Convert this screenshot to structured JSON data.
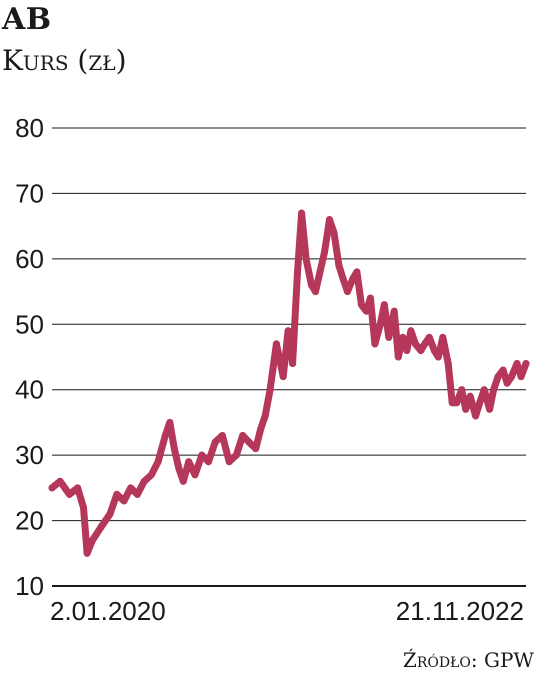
{
  "header": {
    "title": "AB",
    "subtitle": "Kurs (zł)"
  },
  "footer": {
    "source": "Źródło: GPW"
  },
  "chart_data": {
    "type": "line",
    "title": "AB",
    "ylabel": "Kurs (zł)",
    "xlabel": "",
    "ylim": [
      10,
      80
    ],
    "yticks": [
      10,
      20,
      30,
      40,
      50,
      60,
      70,
      80
    ],
    "grid": true,
    "line_color": "#b5375a",
    "x_tick_labels": [
      "2.01.2020",
      "21.11.2022"
    ],
    "x": [
      "2020-01-02",
      "2020-01-20",
      "2020-02-10",
      "2020-02-28",
      "2020-03-12",
      "2020-03-20",
      "2020-04-01",
      "2020-04-20",
      "2020-05-10",
      "2020-05-25",
      "2020-06-10",
      "2020-06-25",
      "2020-07-10",
      "2020-07-25",
      "2020-08-10",
      "2020-08-25",
      "2020-09-10",
      "2020-09-20",
      "2020-09-30",
      "2020-10-10",
      "2020-10-20",
      "2020-11-01",
      "2020-11-15",
      "2020-11-30",
      "2020-12-15",
      "2020-12-30",
      "2021-01-15",
      "2021-01-30",
      "2021-02-15",
      "2021-03-01",
      "2021-03-15",
      "2021-03-30",
      "2021-04-10",
      "2021-04-20",
      "2021-05-01",
      "2021-05-15",
      "2021-05-30",
      "2021-06-10",
      "2021-06-20",
      "2021-07-01",
      "2021-07-10",
      "2021-07-20",
      "2021-08-01",
      "2021-08-10",
      "2021-08-20",
      "2021-08-30",
      "2021-09-10",
      "2021-09-20",
      "2021-10-01",
      "2021-10-10",
      "2021-10-20",
      "2021-11-01",
      "2021-11-10",
      "2021-11-20",
      "2021-12-01",
      "2021-12-10",
      "2021-12-20",
      "2022-01-01",
      "2022-01-10",
      "2022-01-20",
      "2022-02-01",
      "2022-02-10",
      "2022-02-20",
      "2022-03-01",
      "2022-03-10",
      "2022-03-20",
      "2022-04-01",
      "2022-04-10",
      "2022-04-20",
      "2022-05-01",
      "2022-05-10",
      "2022-05-20",
      "2022-06-01",
      "2022-06-10",
      "2022-06-20",
      "2022-07-01",
      "2022-07-10",
      "2022-07-20",
      "2022-08-01",
      "2022-08-10",
      "2022-08-20",
      "2022-09-01",
      "2022-09-10",
      "2022-09-20",
      "2022-10-01",
      "2022-10-10",
      "2022-10-20",
      "2022-11-01",
      "2022-11-10",
      "2022-11-21"
    ],
    "series": [
      {
        "values": [
          25,
          26,
          24,
          25,
          22,
          15,
          17,
          19,
          21,
          24,
          23,
          25,
          24,
          26,
          27,
          29,
          33,
          35,
          31,
          28,
          26,
          29,
          27,
          30,
          29,
          32,
          33,
          29,
          30,
          33,
          32,
          31,
          34,
          36,
          40,
          47,
          42,
          49,
          44,
          58,
          67,
          60,
          56,
          55,
          58,
          61,
          66,
          64,
          59,
          57,
          55,
          57,
          58,
          53,
          52,
          54,
          47,
          50,
          53,
          48,
          52,
          45,
          48,
          46,
          49,
          47,
          46,
          47,
          48,
          46,
          45,
          48,
          44,
          38,
          38,
          40,
          37,
          39,
          36,
          38,
          40,
          37,
          40,
          42,
          43,
          41,
          42,
          44,
          42,
          44
        ]
      }
    ]
  }
}
